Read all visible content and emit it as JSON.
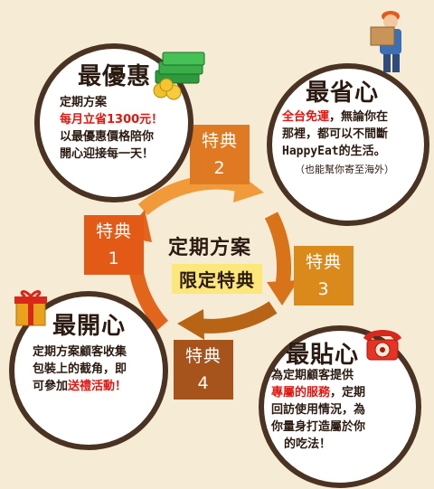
{
  "best_deal": {
    "title": "最優惠",
    "line1": "定期方案",
    "line2": "每月立省1300元！",
    "line3": "以最優惠價格陪你",
    "line4": "開心迎接每一天！"
  },
  "save_effort": {
    "title": "最省心",
    "highlight": "全台免運",
    "line1_rest": "，無論你在",
    "line2": "那裡，都可以不間斷",
    "line3": "HappyEat的生活。",
    "line4": "（也能幫你寄至海外）"
  },
  "happiest": {
    "title": "最開心",
    "line1": "定期方案顧客收集",
    "line2": "包裝上的截角，即",
    "line3_pre": "可參加",
    "line3_hl": "送禮活動！"
  },
  "closest": {
    "title": "最貼心",
    "line1": "為定期顧客提供",
    "line2_hl": "專屬的服務",
    "line2_rest": "，定期",
    "line3": "回訪使用情況，為",
    "line4": "你量身打造屬於你",
    "line5": "的吃法！"
  },
  "perks": [
    {
      "label": "特典",
      "num": "1"
    },
    {
      "label": "特典",
      "num": "2"
    },
    {
      "label": "特典",
      "num": "3"
    },
    {
      "label": "特典",
      "num": "4"
    }
  ],
  "center": {
    "line1": "定期方案",
    "line2": "限定特典"
  },
  "icons": [
    "money-stack-icon",
    "delivery-man-icon",
    "gift-box-icon",
    "telephone-icon"
  ]
}
